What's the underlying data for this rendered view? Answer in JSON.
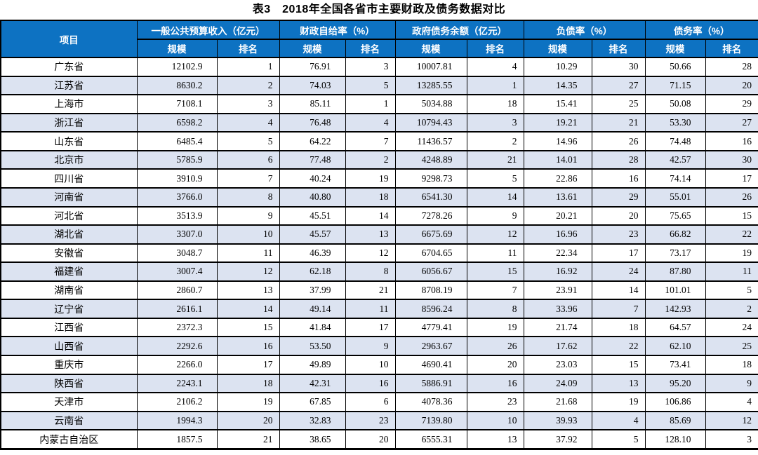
{
  "title": "表3　2018年全国各省市主要财政及债务数据对比",
  "colors": {
    "header_bg": "#0d72c2",
    "row_alt": "#dce3f1",
    "grid": "#000000"
  },
  "table": {
    "item_header": "项目",
    "groups": [
      {
        "label": "一般公共预算收入（亿元）"
      },
      {
        "label": "财政自给率（%）"
      },
      {
        "label": "政府债务余额（亿元）"
      },
      {
        "label": "负债率（%）"
      },
      {
        "label": "债务率（%）"
      }
    ],
    "sub_headers": {
      "scale": "规模",
      "rank": "排名"
    },
    "rows": [
      {
        "name": "广东省",
        "values": [
          "12102.9",
          "1",
          "76.91",
          "3",
          "10007.81",
          "4",
          "10.29",
          "30",
          "50.66",
          "28"
        ]
      },
      {
        "name": "江苏省",
        "values": [
          "8630.2",
          "2",
          "74.03",
          "5",
          "13285.55",
          "1",
          "14.35",
          "27",
          "71.15",
          "20"
        ]
      },
      {
        "name": "上海市",
        "values": [
          "7108.1",
          "3",
          "85.11",
          "1",
          "5034.88",
          "18",
          "15.41",
          "25",
          "50.08",
          "29"
        ]
      },
      {
        "name": "浙江省",
        "values": [
          "6598.2",
          "4",
          "76.48",
          "4",
          "10794.43",
          "3",
          "19.21",
          "21",
          "53.30",
          "27"
        ]
      },
      {
        "name": "山东省",
        "values": [
          "6485.4",
          "5",
          "64.22",
          "7",
          "11436.57",
          "2",
          "14.96",
          "26",
          "74.48",
          "16"
        ]
      },
      {
        "name": "北京市",
        "values": [
          "5785.9",
          "6",
          "77.48",
          "2",
          "4248.89",
          "21",
          "14.01",
          "28",
          "42.57",
          "30"
        ]
      },
      {
        "name": "四川省",
        "values": [
          "3910.9",
          "7",
          "40.24",
          "19",
          "9298.73",
          "5",
          "22.86",
          "16",
          "74.14",
          "17"
        ]
      },
      {
        "name": "河南省",
        "values": [
          "3766.0",
          "8",
          "40.80",
          "18",
          "6541.30",
          "14",
          "13.61",
          "29",
          "55.01",
          "26"
        ]
      },
      {
        "name": "河北省",
        "values": [
          "3513.9",
          "9",
          "45.51",
          "14",
          "7278.26",
          "9",
          "20.21",
          "20",
          "75.65",
          "15"
        ]
      },
      {
        "name": "湖北省",
        "values": [
          "3307.0",
          "10",
          "45.57",
          "13",
          "6675.69",
          "12",
          "16.96",
          "23",
          "66.82",
          "22"
        ]
      },
      {
        "name": "安徽省",
        "values": [
          "3048.7",
          "11",
          "46.39",
          "12",
          "6704.65",
          "11",
          "22.34",
          "17",
          "73.17",
          "19"
        ]
      },
      {
        "name": "福建省",
        "values": [
          "3007.4",
          "12",
          "62.18",
          "8",
          "6056.67",
          "15",
          "16.92",
          "24",
          "87.80",
          "11"
        ]
      },
      {
        "name": "湖南省",
        "values": [
          "2860.7",
          "13",
          "37.99",
          "21",
          "8708.19",
          "7",
          "23.91",
          "14",
          "101.01",
          "5"
        ]
      },
      {
        "name": "辽宁省",
        "values": [
          "2616.1",
          "14",
          "49.14",
          "11",
          "8596.24",
          "8",
          "33.96",
          "7",
          "142.93",
          "2"
        ]
      },
      {
        "name": "江西省",
        "values": [
          "2372.3",
          "15",
          "41.84",
          "17",
          "4779.41",
          "19",
          "21.74",
          "18",
          "64.57",
          "24"
        ]
      },
      {
        "name": "山西省",
        "values": [
          "2292.6",
          "16",
          "53.50",
          "9",
          "2963.67",
          "26",
          "17.62",
          "22",
          "62.10",
          "25"
        ]
      },
      {
        "name": "重庆市",
        "values": [
          "2266.0",
          "17",
          "49.89",
          "10",
          "4690.41",
          "20",
          "23.03",
          "15",
          "73.41",
          "18"
        ]
      },
      {
        "name": "陕西省",
        "values": [
          "2243.1",
          "18",
          "42.31",
          "16",
          "5886.91",
          "16",
          "24.09",
          "13",
          "95.20",
          "9"
        ]
      },
      {
        "name": "天津市",
        "values": [
          "2106.2",
          "19",
          "67.85",
          "6",
          "4078.36",
          "23",
          "21.68",
          "19",
          "106.86",
          "4"
        ]
      },
      {
        "name": "云南省",
        "values": [
          "1994.3",
          "20",
          "32.83",
          "23",
          "7139.80",
          "10",
          "39.93",
          "4",
          "85.69",
          "12"
        ]
      },
      {
        "name": "内蒙古自治区",
        "values": [
          "1857.5",
          "21",
          "38.65",
          "20",
          "6555.31",
          "13",
          "37.92",
          "5",
          "128.10",
          "3"
        ]
      }
    ]
  }
}
